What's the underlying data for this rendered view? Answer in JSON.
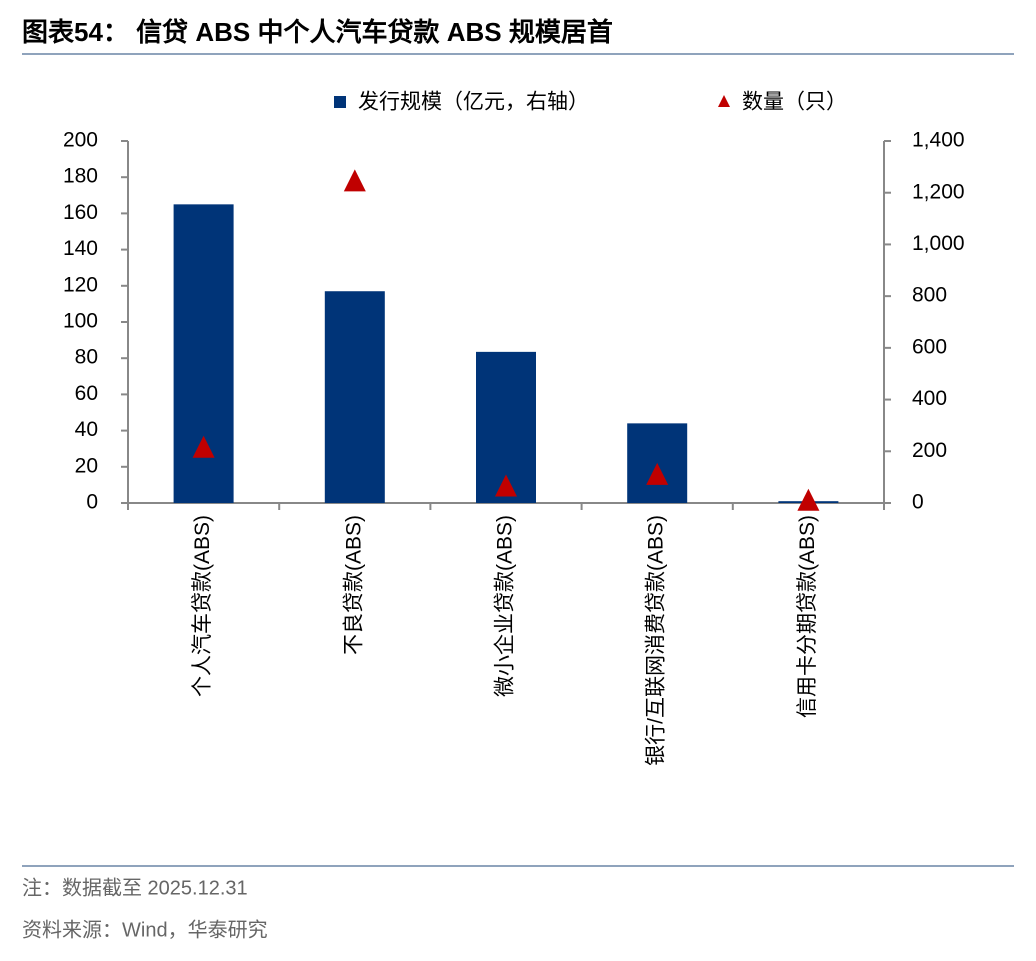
{
  "chart_data": {
    "type": "bar",
    "title": "图表54：  信贷 ABS 中个人汽车贷款 ABS 规模居首",
    "categories": [
      "个人汽车贷款(ABS)",
      "不良贷款(ABS)",
      "微小企业贷款(ABS)",
      "银行/互联网消费贷款(ABS)",
      "信用卡分期贷款(ABS)"
    ],
    "series": [
      {
        "name": "发行规模（亿元，右轴）",
        "color": "#003478",
        "values": [
          165,
          117,
          83.5,
          44,
          1
        ]
      },
      {
        "name": "数量（只）",
        "color": "#c00000",
        "type": "scatter",
        "marker": "triangle",
        "axis": "y2",
        "values": [
          210,
          1240,
          60,
          105,
          5
        ]
      }
    ],
    "ylim": [
      0,
      200
    ],
    "yticks": [
      0,
      20,
      40,
      60,
      80,
      100,
      120,
      140,
      160,
      180,
      200
    ],
    "y2lim": [
      0,
      1400
    ],
    "y2ticks": [
      0,
      200,
      400,
      600,
      800,
      {
        "value": 1000,
        "label": "1,000"
      },
      {
        "value": 1200,
        "label": "1,200"
      },
      {
        "value": 1400,
        "label": "1,400"
      }
    ],
    "grid": false,
    "legend": "top",
    "note": "注：数据截至 2025.12.31",
    "source": "资料来源：Wind，华泰研究"
  }
}
